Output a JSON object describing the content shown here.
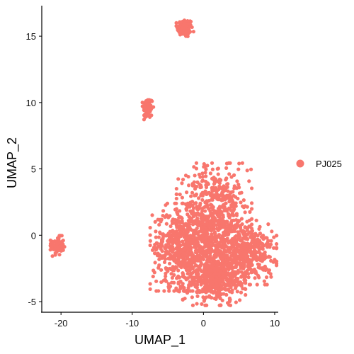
{
  "chart_data": {
    "type": "scatter",
    "title": "",
    "xlabel": "UMAP_1",
    "ylabel": "UMAP_2",
    "xlim": [
      -22.7,
      10.5
    ],
    "ylim": [
      -5.8,
      17.3
    ],
    "x_ticks": [
      -20,
      -10,
      0,
      10
    ],
    "y_ticks": [
      -5,
      0,
      5,
      10,
      15
    ],
    "grid": false,
    "legend_position": "right",
    "series": [
      {
        "name": "PJ025",
        "color": "#F8766D",
        "clusters": [
          {
            "center": [
              -2.6,
              15.6
            ],
            "spread": [
              0.55,
              0.35
            ],
            "count": 110
          },
          {
            "center": [
              -7.8,
              9.6
            ],
            "spread": [
              0.35,
              0.4
            ],
            "count": 90
          },
          {
            "center": [
              -20.5,
              -0.8
            ],
            "spread": [
              0.45,
              0.35
            ],
            "count": 90
          },
          {
            "center": [
              1.5,
              0.6
            ],
            "spread": [
              2.4,
              2.2
            ],
            "count": 900
          },
          {
            "center": [
              -3.3,
              -0.9
            ],
            "spread": [
              1.9,
              1.5
            ],
            "count": 500
          },
          {
            "center": [
              6.3,
              -1.3
            ],
            "spread": [
              1.8,
              1.1
            ],
            "count": 400
          },
          {
            "center": [
              1.5,
              -3.3
            ],
            "spread": [
              2.0,
              0.9
            ],
            "count": 400
          }
        ]
      }
    ]
  }
}
